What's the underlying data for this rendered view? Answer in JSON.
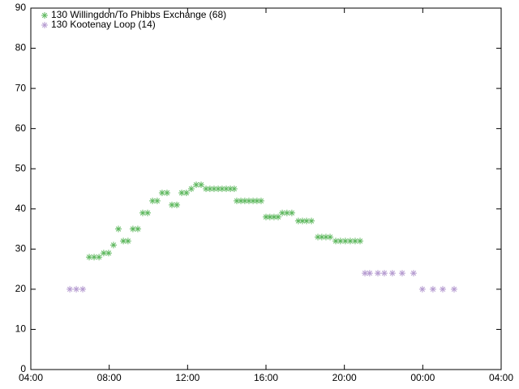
{
  "chart_data": {
    "type": "scatter",
    "xlim": [
      4,
      28
    ],
    "xticks": [
      {
        "value": 4,
        "label": "04:00"
      },
      {
        "value": 8,
        "label": "08:00"
      },
      {
        "value": 12,
        "label": "12:00"
      },
      {
        "value": 16,
        "label": "16:00"
      },
      {
        "value": 20,
        "label": "20:00"
      },
      {
        "value": 24,
        "label": "00:00"
      },
      {
        "value": 28,
        "label": "04:00"
      }
    ],
    "ylim": [
      0,
      90
    ],
    "yticks": [
      0,
      10,
      20,
      30,
      40,
      50,
      60,
      70,
      80,
      90
    ],
    "legend": "top-left",
    "series": [
      {
        "name": "130 Willingdon/To Phibbs Exchange (68)",
        "color": "#5fb85f",
        "x": [
          6.98,
          7.23,
          7.48,
          7.72,
          7.97,
          8.22,
          8.47,
          8.72,
          8.96,
          9.21,
          9.46,
          9.71,
          9.96,
          10.21,
          10.45,
          10.7,
          10.95,
          11.2,
          11.45,
          11.7,
          11.94,
          12.19,
          12.44,
          12.69,
          12.94,
          13.14,
          13.35,
          13.56,
          13.76,
          13.97,
          14.18,
          14.38,
          14.51,
          14.72,
          14.92,
          15.13,
          15.34,
          15.54,
          15.75,
          16.0,
          16.2,
          16.41,
          16.62,
          16.83,
          17.07,
          17.32,
          17.65,
          17.86,
          18.07,
          18.32,
          18.65,
          18.85,
          19.06,
          19.27,
          19.56,
          19.8,
          20.05,
          20.3,
          20.55,
          20.8
        ],
        "values": [
          28,
          28,
          28,
          29,
          29,
          31,
          35,
          32,
          32,
          35,
          35,
          39,
          39,
          42,
          42,
          44,
          44,
          41,
          41,
          44,
          44,
          45,
          46,
          46,
          45,
          45,
          45,
          45,
          45,
          45,
          45,
          45,
          42,
          42,
          42,
          42,
          42,
          42,
          42,
          38,
          38,
          38,
          38,
          39,
          39,
          39,
          37,
          37,
          37,
          37,
          33,
          33,
          33,
          33,
          32,
          32,
          32,
          32,
          32,
          32
        ]
      },
      {
        "name": "130 Kootenay Loop (14)",
        "color": "#b59bd0",
        "x": [
          5.99,
          6.32,
          6.65,
          21.05,
          21.29,
          21.71,
          22.04,
          22.45,
          22.95,
          23.53,
          23.98,
          24.52,
          25.02,
          25.6
        ],
        "values": [
          20,
          20,
          20,
          24,
          24,
          24,
          24,
          24,
          24,
          24,
          20,
          20,
          20,
          20
        ]
      }
    ]
  }
}
